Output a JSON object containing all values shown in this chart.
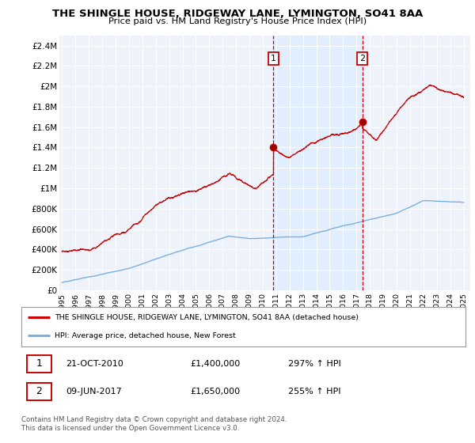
{
  "title": "THE SHINGLE HOUSE, RIDGEWAY LANE, LYMINGTON, SO41 8AA",
  "subtitle": "Price paid vs. HM Land Registry's House Price Index (HPI)",
  "legend_line1": "THE SHINGLE HOUSE, RIDGEWAY LANE, LYMINGTON, SO41 8AA (detached house)",
  "legend_line2": "HPI: Average price, detached house, New Forest",
  "annotation1": {
    "num": "1",
    "date": "21-OCT-2010",
    "price": "£1,400,000",
    "pct": "297% ↑ HPI"
  },
  "annotation2": {
    "num": "2",
    "date": "09-JUN-2017",
    "price": "£1,650,000",
    "pct": "255% ↑ HPI"
  },
  "footer": "Contains HM Land Registry data © Crown copyright and database right 2024.\nThis data is licensed under the Open Government Licence v3.0.",
  "hpi_color": "#7ab0e0",
  "price_color": "#cc0000",
  "shade_color": "#ddeeff",
  "ylim_min": 0,
  "ylim_max": 2500000,
  "yticks": [
    0,
    200000,
    400000,
    600000,
    800000,
    1000000,
    1200000,
    1400000,
    1600000,
    1800000,
    2000000,
    2200000,
    2400000
  ],
  "ytick_labels": [
    "£0",
    "£200K",
    "£400K",
    "£600K",
    "£800K",
    "£1M",
    "£1.2M",
    "£1.4M",
    "£1.6M",
    "£1.8M",
    "£2M",
    "£2.2M",
    "£2.4M"
  ],
  "xmin": 1994.8,
  "xmax": 2025.5,
  "xticks": [
    1995,
    1996,
    1997,
    1998,
    1999,
    2000,
    2001,
    2002,
    2003,
    2004,
    2005,
    2006,
    2007,
    2008,
    2009,
    2010,
    2011,
    2012,
    2013,
    2014,
    2015,
    2016,
    2017,
    2018,
    2019,
    2020,
    2021,
    2022,
    2023,
    2024,
    2025
  ],
  "sale1_x": 2010.8,
  "sale1_y": 1400000,
  "sale2_x": 2017.44,
  "sale2_y": 1650000,
  "background_color": "#eef2fb"
}
